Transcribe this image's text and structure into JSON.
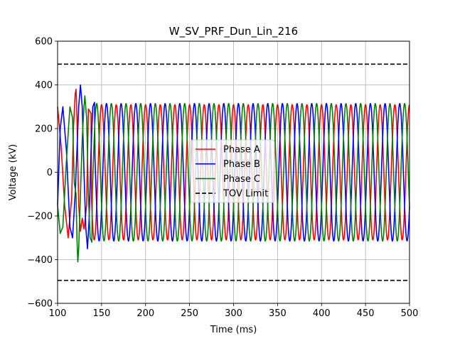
{
  "chart_data": {
    "type": "line",
    "title": "W_SV_PRF_Dun_Lin_216",
    "xlabel": "Time (ms)",
    "ylabel": "Voltage (kV)",
    "xlim": [
      100,
      500
    ],
    "ylim": [
      -600,
      600
    ],
    "xticks": [
      100,
      150,
      200,
      250,
      300,
      350,
      400,
      450,
      500
    ],
    "yticks": [
      -600,
      -400,
      -200,
      0,
      200,
      400,
      600
    ],
    "xtick_labels": [
      "100",
      "150",
      "200",
      "250",
      "300",
      "350",
      "400",
      "450",
      "500"
    ],
    "ytick_labels": [
      "−600",
      "−400",
      "−200",
      "0",
      "200",
      "400",
      "600"
    ],
    "grid": true,
    "legend_position": "center",
    "series": [
      {
        "name": "Phase A",
        "color": "#ff0000",
        "style": "solid",
        "waveform": {
          "amplitude_kv": 310,
          "frequency_hz": 60,
          "phase_deg": 90,
          "start_ms": 100,
          "end_ms": 500
        },
        "transient_points": [
          [
            100,
            300
          ],
          [
            104,
            120
          ],
          [
            108,
            -150
          ],
          [
            112,
            -300
          ],
          [
            116,
            -120
          ],
          [
            118,
            200
          ],
          [
            120,
            360
          ],
          [
            121,
            380
          ],
          [
            122,
            250
          ],
          [
            123,
            50
          ],
          [
            124,
            -150
          ],
          [
            126,
            -270
          ],
          [
            128,
            -210
          ],
          [
            130,
            -260
          ],
          [
            131,
            -230
          ],
          [
            133,
            -150
          ],
          [
            135,
            290
          ],
          [
            138,
            270
          ]
        ]
      },
      {
        "name": "Phase B",
        "color": "#0000ff",
        "style": "solid",
        "waveform": {
          "amplitude_kv": 315,
          "frequency_hz": 60,
          "phase_deg": -30,
          "start_ms": 100,
          "end_ms": 500
        },
        "transient_points": [
          [
            100,
            -150
          ],
          [
            103,
            200
          ],
          [
            106,
            300
          ],
          [
            110,
            100
          ],
          [
            114,
            -250
          ],
          [
            117,
            -300
          ],
          [
            120,
            -100
          ],
          [
            122,
            100
          ],
          [
            124,
            300
          ],
          [
            126,
            400
          ],
          [
            128,
            300
          ],
          [
            130,
            0
          ],
          [
            132,
            -250
          ],
          [
            134,
            -350
          ],
          [
            136,
            -200
          ],
          [
            138,
            100
          ],
          [
            140,
            300
          ],
          [
            142,
            320
          ]
        ]
      },
      {
        "name": "Phase C",
        "color": "#008000",
        "style": "solid",
        "waveform": {
          "amplitude_kv": 315,
          "frequency_hz": 60,
          "phase_deg": 210,
          "start_ms": 100,
          "end_ms": 500
        },
        "transient_points": [
          [
            100,
            -150
          ],
          [
            103,
            -280
          ],
          [
            106,
            -250
          ],
          [
            110,
            50
          ],
          [
            114,
            300
          ],
          [
            117,
            250
          ],
          [
            119,
            -50
          ],
          [
            121,
            -100
          ],
          [
            122,
            -300
          ],
          [
            123,
            -410
          ],
          [
            124,
            -350
          ],
          [
            126,
            -100
          ],
          [
            128,
            150
          ],
          [
            130,
            300
          ],
          [
            131,
            350
          ],
          [
            133,
            250
          ],
          [
            135,
            -100
          ],
          [
            137,
            -300
          ],
          [
            139,
            -320
          ]
        ]
      },
      {
        "name": "TOV Limit",
        "color": "#000000",
        "style": "dashed",
        "levels": [
          495,
          -495
        ]
      }
    ]
  }
}
